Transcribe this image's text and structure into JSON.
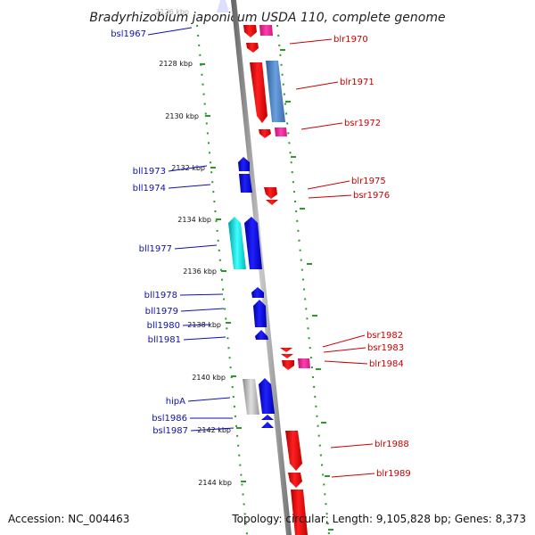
{
  "header": {
    "title": "Bradyrhizobium japonicum USDA 110, complete genome"
  },
  "footer": {
    "accession": "Accession: NC_004463",
    "summary": "Topology: circular; Length: 9,105,828 bp; Genes: 8,373"
  },
  "ticks": [
    "2126 kbp",
    "2128 kbp",
    "2130 kbp",
    "2132 kbp",
    "2134 kbp",
    "2136 kbp",
    "2138 kbp",
    "2140 kbp",
    "2142 kbp",
    "2144 kbp"
  ],
  "left_genes": [
    "bsl1967",
    "bll1973",
    "bll1974",
    "bll1977",
    "bll1978",
    "bll1979",
    "bll1980",
    "bll1981",
    "hipA",
    "bsl1986",
    "bsl1987"
  ],
  "right_genes": [
    "blr1970",
    "blr1971",
    "bsr1972",
    "blr1975",
    "bsr1976",
    "bsr1982",
    "bsr1983",
    "blr1984",
    "blr1988",
    "blr1989"
  ],
  "colors": {
    "forward_strand": "#ff0000",
    "reverse_strand": "#0000ff",
    "pseudo_pink": "#ff2a9c",
    "steelblue": "#4a7fc0",
    "cyan": "#00e5e5",
    "gray": "#b8b8b8",
    "label_left": "#1010b0",
    "label_right": "#cc0000",
    "track_dots": "#2a9a2a"
  }
}
